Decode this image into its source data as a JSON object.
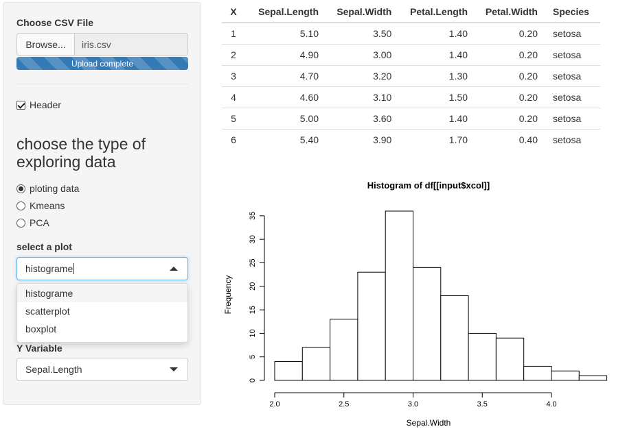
{
  "sidebar": {
    "file_input": {
      "label": "Choose CSV File",
      "browse_label": "Browse...",
      "file_name": "iris.csv",
      "progress_label": "Upload complete",
      "progress": 1.0
    },
    "header_checkbox": {
      "label": "Header",
      "checked": true
    },
    "section_title": "choose the type of exploring data",
    "radios": [
      {
        "label": "ploting data",
        "checked": true
      },
      {
        "label": "Kmeans",
        "checked": false
      },
      {
        "label": "PCA",
        "checked": false
      }
    ],
    "plot_select": {
      "label": "select a plot",
      "value": "histograme",
      "options": [
        "histograme",
        "scatterplot",
        "boxplot"
      ]
    },
    "y_select": {
      "label": "Y Variable",
      "value": "Sepal.Length"
    }
  },
  "table": {
    "columns": [
      "X",
      "Sepal.Length",
      "Sepal.Width",
      "Petal.Length",
      "Petal.Width",
      "Species"
    ],
    "rows": [
      [
        "1",
        "5.10",
        "3.50",
        "1.40",
        "0.20",
        "setosa"
      ],
      [
        "2",
        "4.90",
        "3.00",
        "1.40",
        "0.20",
        "setosa"
      ],
      [
        "3",
        "4.70",
        "3.20",
        "1.30",
        "0.20",
        "setosa"
      ],
      [
        "4",
        "4.60",
        "3.10",
        "1.50",
        "0.20",
        "setosa"
      ],
      [
        "5",
        "5.00",
        "3.60",
        "1.40",
        "0.20",
        "setosa"
      ],
      [
        "6",
        "5.40",
        "3.90",
        "1.70",
        "0.40",
        "setosa"
      ]
    ]
  },
  "chart_data": {
    "type": "bar",
    "title": "Histogram of df[[input$xcol]]",
    "xlabel": "Sepal.Width",
    "ylabel": "Frequency",
    "bins": [
      {
        "from": 2.0,
        "to": 2.2,
        "count": 4
      },
      {
        "from": 2.2,
        "to": 2.4,
        "count": 7
      },
      {
        "from": 2.4,
        "to": 2.6,
        "count": 13
      },
      {
        "from": 2.6,
        "to": 2.8,
        "count": 23
      },
      {
        "from": 2.8,
        "to": 3.0,
        "count": 36
      },
      {
        "from": 3.0,
        "to": 3.2,
        "count": 24
      },
      {
        "from": 3.2,
        "to": 3.4,
        "count": 18
      },
      {
        "from": 3.4,
        "to": 3.6,
        "count": 10
      },
      {
        "from": 3.6,
        "to": 3.8,
        "count": 9
      },
      {
        "from": 3.8,
        "to": 4.0,
        "count": 3
      },
      {
        "from": 4.0,
        "to": 4.2,
        "count": 2
      },
      {
        "from": 4.2,
        "to": 4.4,
        "count": 1
      }
    ],
    "x_ticks": [
      "2.0",
      "2.5",
      "3.0",
      "3.5",
      "4.0"
    ],
    "x_tick_values": [
      2.0,
      2.5,
      3.0,
      3.5,
      4.0
    ],
    "y_ticks": [
      "0",
      "5",
      "10",
      "15",
      "20",
      "25",
      "30",
      "35"
    ],
    "y_tick_values": [
      0,
      5,
      10,
      15,
      20,
      25,
      30,
      35
    ],
    "xlim": [
      2.0,
      4.4
    ],
    "ylim": [
      0,
      36
    ],
    "grid": false,
    "legend": "none"
  },
  "colors": {
    "accent": "#337ab7",
    "sidebar_bg": "#f5f5f5",
    "border": "#cccccc",
    "focus": "#66afe9"
  }
}
